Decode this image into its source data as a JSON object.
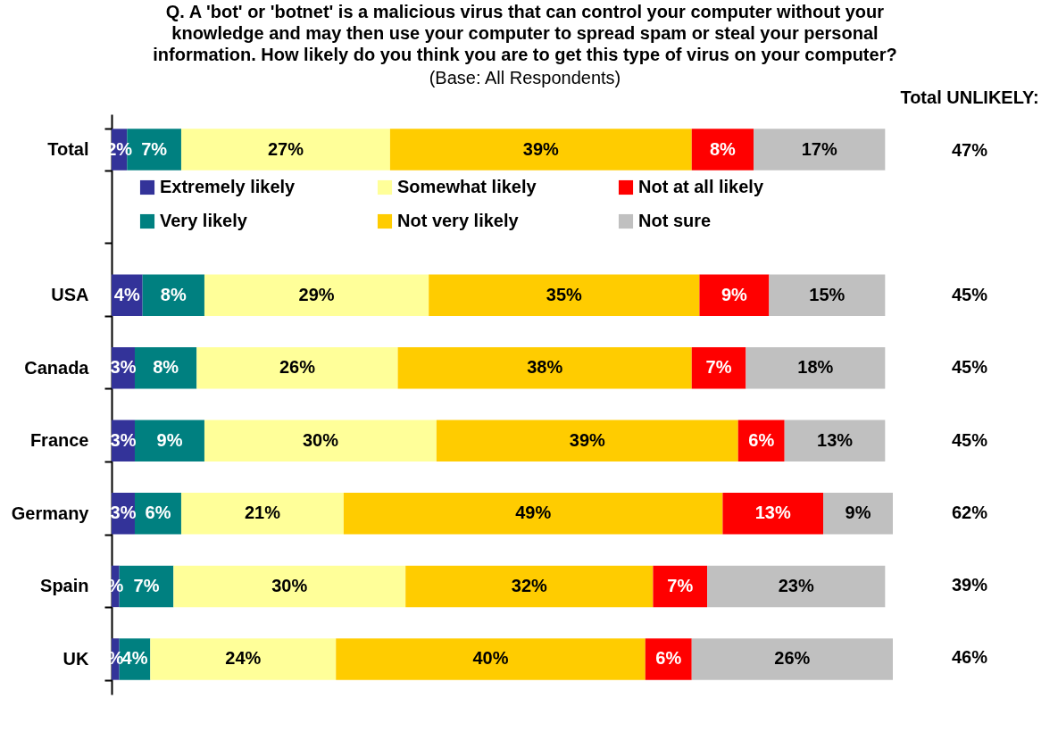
{
  "chart_data": {
    "type": "bar",
    "orientation": "horizontal",
    "stacked": true,
    "title": [
      "Q. A 'bot' or 'botnet' is a malicious virus that can control your computer without your",
      "knowledge and may then use your computer to spread spam or steal your personal",
      "information. How likely do you think you are to get this type of virus on your computer?"
    ],
    "subtitle": "(Base: All Respondents)",
    "categories": [
      "Total",
      null,
      "USA",
      "Canada",
      "France",
      "Germany",
      "Spain",
      "UK"
    ],
    "series": [
      {
        "name": "Extremely likely",
        "color": "#333399",
        "values": [
          2,
          null,
          4,
          3,
          3,
          3,
          1,
          1
        ],
        "value_labels": [
          "2%",
          null,
          "4%",
          "3%",
          "3%",
          "3%",
          "%",
          "%"
        ]
      },
      {
        "name": "Very likely",
        "color": "#008080",
        "values": [
          7,
          null,
          8,
          8,
          9,
          6,
          7,
          4
        ],
        "value_labels": [
          "7%",
          null,
          "8%",
          "8%",
          "9%",
          "6%",
          "7%",
          "4%"
        ]
      },
      {
        "name": "Somewhat likely",
        "color": "#ffff99",
        "values": [
          27,
          null,
          29,
          26,
          30,
          21,
          30,
          24
        ],
        "value_labels": [
          "27%",
          null,
          "29%",
          "26%",
          "30%",
          "21%",
          "30%",
          "24%"
        ]
      },
      {
        "name": "Not very likely",
        "color": "#ffcc00",
        "values": [
          39,
          null,
          35,
          38,
          39,
          49,
          32,
          40
        ],
        "value_labels": [
          "39%",
          null,
          "35%",
          "38%",
          "39%",
          "49%",
          "32%",
          "40%"
        ]
      },
      {
        "name": "Not at all likely",
        "color": "#ff0000",
        "values": [
          8,
          null,
          9,
          7,
          6,
          13,
          7,
          6
        ],
        "value_labels": [
          "8%",
          null,
          "9%",
          "7%",
          "6%",
          "13%",
          "7%",
          "6%"
        ]
      },
      {
        "name": "Not sure",
        "color": "#c0c0c0",
        "values": [
          17,
          null,
          15,
          18,
          13,
          9,
          23,
          26
        ],
        "value_labels": [
          "17%",
          null,
          "15%",
          "18%",
          "13%",
          "9%",
          "23%",
          "26%"
        ]
      }
    ],
    "legend": "top",
    "tick_labels": "y",
    "annotations": [
      "Total\nUNLIKELY:",
      "47%",
      "45%",
      "45%",
      "45%",
      "62%",
      "39%",
      "46%"
    ]
  }
}
